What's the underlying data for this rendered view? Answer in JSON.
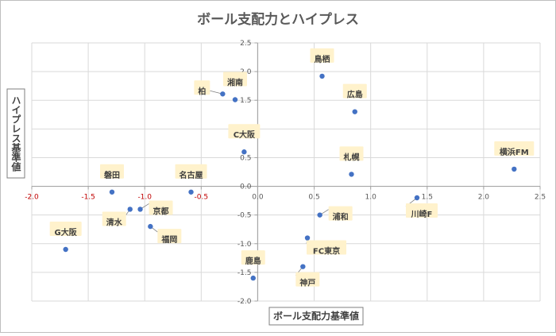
{
  "chart_data": {
    "type": "scatter",
    "title": "ボール支配力とハイプレス",
    "xlabel": "ボール支配力基準値",
    "ylabel": "ハイプレス基準値",
    "xlim": [
      -2.0,
      2.5
    ],
    "ylim": [
      -2.0,
      2.5
    ],
    "x_ticks": [
      "-2.0",
      "-1.5",
      "-1.0",
      "-0.5",
      "0.0",
      "0.5",
      "1.0",
      "1.5",
      "2.0",
      "2.5"
    ],
    "y_ticks": [
      "2.5",
      "2.0",
      "1.5",
      "1.0",
      "0.5",
      "0.0",
      "-0.5",
      "-1.0",
      "-1.5",
      "-2.0"
    ],
    "x_tick_values": [
      -2.0,
      -1.5,
      -1.0,
      -0.5,
      0.0,
      0.5,
      1.0,
      1.5,
      2.0,
      2.5
    ],
    "y_tick_values": [
      2.5,
      2.0,
      1.5,
      1.0,
      0.5,
      0.0,
      -0.5,
      -1.0,
      -1.5,
      -2.0
    ],
    "grid": true,
    "marker_color": "#4472C4",
    "negative_tick_color": "#C00000",
    "label_bg_color": "#FFF2CC",
    "points": [
      {
        "name": "鳥栖",
        "x": 0.57,
        "y": 1.92,
        "label_pos": "above"
      },
      {
        "name": "広島",
        "x": 0.86,
        "y": 1.3,
        "label_pos": "above"
      },
      {
        "name": "湘南",
        "x": -0.2,
        "y": 1.51,
        "label_pos": "above"
      },
      {
        "name": "柏",
        "x": -0.31,
        "y": 1.61,
        "label_pos": "left"
      },
      {
        "name": "C大阪",
        "x": -0.12,
        "y": 0.6,
        "label_pos": "above"
      },
      {
        "name": "札幌",
        "x": 0.83,
        "y": 0.21,
        "label_pos": "above"
      },
      {
        "name": "横浜FM",
        "x": 2.27,
        "y": 0.3,
        "label_pos": "above"
      },
      {
        "name": "名古屋",
        "x": -0.59,
        "y": -0.1,
        "label_pos": "above"
      },
      {
        "name": "磐田",
        "x": -1.29,
        "y": -0.1,
        "label_pos": "above"
      },
      {
        "name": "清水",
        "x": -1.13,
        "y": -0.4,
        "label_pos": "below-left"
      },
      {
        "name": "京都",
        "x": -1.04,
        "y": -0.4,
        "label_pos": "right"
      },
      {
        "name": "福岡",
        "x": -0.95,
        "y": -0.7,
        "label_pos": "below-right"
      },
      {
        "name": "G大阪",
        "x": -1.7,
        "y": -1.1,
        "label_pos": "above"
      },
      {
        "name": "川崎F",
        "x": 1.41,
        "y": -0.2,
        "label_pos": "below"
      },
      {
        "name": "浦和",
        "x": 0.55,
        "y": -0.5,
        "label_pos": "right"
      },
      {
        "name": "FC東京",
        "x": 0.44,
        "y": -0.9,
        "label_pos": "below-right"
      },
      {
        "name": "神戸",
        "x": 0.4,
        "y": -1.4,
        "label_pos": "below"
      },
      {
        "name": "鹿島",
        "x": -0.04,
        "y": -1.6,
        "label_pos": "above"
      }
    ]
  }
}
